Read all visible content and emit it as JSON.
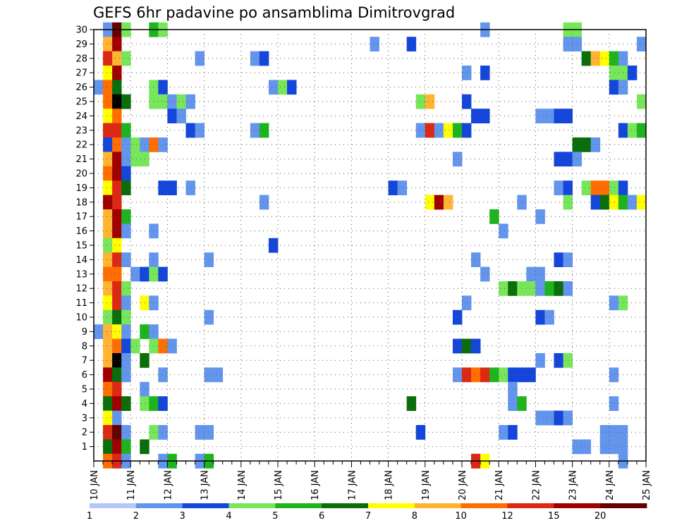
{
  "chart_data": {
    "type": "heatmap",
    "title": "GEFS 6hr padavine po ansamblima Dimitrovgrad",
    "x_tick_labels": [
      "10 JAN",
      "11 JAN",
      "12 JAN",
      "13 JAN",
      "14 JAN",
      "15 JAN",
      "16 JAN",
      "17 JAN",
      "18 JAN",
      "19 JAN",
      "20 JAN",
      "21 JAN",
      "22 JAN",
      "23 JAN",
      "24 JAN",
      "25 JAN"
    ],
    "y_tick_labels": [
      "1",
      "2",
      "3",
      "4",
      "5",
      "6",
      "7",
      "8",
      "9",
      "10",
      "11",
      "12",
      "13",
      "14",
      "15",
      "16",
      "17",
      "18",
      "19",
      "20",
      "21",
      "22",
      "23",
      "24",
      "25",
      "26",
      "27",
      "28",
      "29",
      "30"
    ],
    "x_range_steps": [
      0,
      60
    ],
    "y_range_members": [
      0,
      30
    ],
    "grid": "dotted",
    "legend": {
      "placement": "bottom",
      "labels": [
        "1",
        "2",
        "3",
        "4",
        "5",
        "6",
        "7",
        "8",
        "10",
        "12",
        "15",
        "20"
      ],
      "colors": [
        "#b4c8f8",
        "#6495ed",
        "#1446dc",
        "#78e65a",
        "#1eb41e",
        "#0a6e0a",
        "#ffff00",
        "#ffb432",
        "#ff6e00",
        "#dc2814",
        "#a00000",
        "#640000"
      ]
    },
    "cells": [
      [
        30,
        1,
        1
      ],
      [
        30,
        2,
        11
      ],
      [
        30,
        3,
        3
      ],
      [
        30,
        6,
        4
      ],
      [
        30,
        7,
        3
      ],
      [
        30,
        42,
        1
      ],
      [
        30,
        51,
        3
      ],
      [
        30,
        52,
        3
      ],
      [
        29,
        1,
        7
      ],
      [
        29,
        2,
        10
      ],
      [
        29,
        30,
        1
      ],
      [
        29,
        34,
        2
      ],
      [
        29,
        51,
        1
      ],
      [
        29,
        52,
        1
      ],
      [
        29,
        59,
        1
      ],
      [
        28,
        1,
        9
      ],
      [
        28,
        2,
        7
      ],
      [
        28,
        3,
        3
      ],
      [
        28,
        11,
        1
      ],
      [
        28,
        17,
        1
      ],
      [
        28,
        18,
        2
      ],
      [
        28,
        53,
        5
      ],
      [
        28,
        54,
        7
      ],
      [
        28,
        55,
        6
      ],
      [
        28,
        56,
        4
      ],
      [
        28,
        57,
        1
      ],
      [
        27,
        1,
        6
      ],
      [
        27,
        2,
        10
      ],
      [
        27,
        40,
        1
      ],
      [
        27,
        42,
        2
      ],
      [
        27,
        56,
        3
      ],
      [
        27,
        57,
        3
      ],
      [
        27,
        58,
        2
      ],
      [
        26,
        0,
        1
      ],
      [
        26,
        1,
        8
      ],
      [
        26,
        2,
        5
      ],
      [
        26,
        6,
        3
      ],
      [
        26,
        7,
        2
      ],
      [
        26,
        19,
        1
      ],
      [
        26,
        20,
        3
      ],
      [
        26,
        21,
        2
      ],
      [
        26,
        56,
        2
      ],
      [
        26,
        57,
        1
      ],
      [
        25,
        1,
        8
      ],
      [
        25,
        2,
        12
      ],
      [
        25,
        3,
        5
      ],
      [
        25,
        6,
        3
      ],
      [
        25,
        7,
        3
      ],
      [
        25,
        8,
        1
      ],
      [
        25,
        9,
        3
      ],
      [
        25,
        10,
        1
      ],
      [
        25,
        35,
        3
      ],
      [
        25,
        36,
        7
      ],
      [
        25,
        40,
        2
      ],
      [
        25,
        59,
        3
      ],
      [
        24,
        1,
        6
      ],
      [
        24,
        2,
        8
      ],
      [
        24,
        8,
        2
      ],
      [
        24,
        9,
        1
      ],
      [
        24,
        41,
        2
      ],
      [
        24,
        42,
        2
      ],
      [
        24,
        48,
        1
      ],
      [
        24,
        49,
        1
      ],
      [
        24,
        50,
        2
      ],
      [
        24,
        51,
        2
      ],
      [
        23,
        1,
        9
      ],
      [
        23,
        2,
        9
      ],
      [
        23,
        3,
        4
      ],
      [
        23,
        10,
        2
      ],
      [
        23,
        11,
        1
      ],
      [
        23,
        17,
        1
      ],
      [
        23,
        18,
        4
      ],
      [
        23,
        35,
        1
      ],
      [
        23,
        36,
        9
      ],
      [
        23,
        37,
        1
      ],
      [
        23,
        38,
        6
      ],
      [
        23,
        39,
        4
      ],
      [
        23,
        40,
        2
      ],
      [
        23,
        57,
        2
      ],
      [
        23,
        58,
        3
      ],
      [
        23,
        59,
        4
      ],
      [
        22,
        1,
        2
      ],
      [
        22,
        2,
        8
      ],
      [
        22,
        3,
        1
      ],
      [
        22,
        4,
        3
      ],
      [
        22,
        5,
        1
      ],
      [
        22,
        6,
        8
      ],
      [
        22,
        7,
        1
      ],
      [
        22,
        52,
        5
      ],
      [
        22,
        53,
        5
      ],
      [
        22,
        54,
        1
      ],
      [
        21,
        1,
        7
      ],
      [
        21,
        2,
        10
      ],
      [
        21,
        3,
        1
      ],
      [
        21,
        4,
        3
      ],
      [
        21,
        5,
        3
      ],
      [
        21,
        39,
        1
      ],
      [
        21,
        50,
        2
      ],
      [
        21,
        51,
        2
      ],
      [
        21,
        52,
        1
      ],
      [
        20,
        1,
        8
      ],
      [
        20,
        2,
        10
      ],
      [
        20,
        3,
        2
      ],
      [
        19,
        1,
        6
      ],
      [
        19,
        2,
        9
      ],
      [
        19,
        3,
        5
      ],
      [
        19,
        7,
        2
      ],
      [
        19,
        8,
        2
      ],
      [
        19,
        10,
        1
      ],
      [
        19,
        32,
        2
      ],
      [
        19,
        33,
        1
      ],
      [
        19,
        50,
        1
      ],
      [
        19,
        51,
        2
      ],
      [
        19,
        53,
        3
      ],
      [
        19,
        54,
        8
      ],
      [
        19,
        55,
        8
      ],
      [
        19,
        56,
        3
      ],
      [
        19,
        57,
        2
      ],
      [
        18,
        1,
        10
      ],
      [
        18,
        2,
        9
      ],
      [
        18,
        18,
        1
      ],
      [
        18,
        36,
        6
      ],
      [
        18,
        37,
        10
      ],
      [
        18,
        38,
        7
      ],
      [
        18,
        46,
        1
      ],
      [
        18,
        51,
        3
      ],
      [
        18,
        54,
        2
      ],
      [
        18,
        55,
        5
      ],
      [
        18,
        56,
        6
      ],
      [
        18,
        57,
        4
      ],
      [
        18,
        58,
        1
      ],
      [
        18,
        59,
        6
      ],
      [
        17,
        1,
        7
      ],
      [
        17,
        2,
        10
      ],
      [
        17,
        3,
        4
      ],
      [
        17,
        43,
        4
      ],
      [
        17,
        48,
        1
      ],
      [
        16,
        1,
        7
      ],
      [
        16,
        2,
        10
      ],
      [
        16,
        3,
        1
      ],
      [
        16,
        6,
        1
      ],
      [
        16,
        44,
        1
      ],
      [
        15,
        1,
        3
      ],
      [
        15,
        2,
        6
      ],
      [
        15,
        19,
        2
      ],
      [
        14,
        1,
        7
      ],
      [
        14,
        2,
        9
      ],
      [
        14,
        3,
        1
      ],
      [
        14,
        6,
        1
      ],
      [
        14,
        12,
        1
      ],
      [
        14,
        41,
        1
      ],
      [
        14,
        50,
        2
      ],
      [
        14,
        51,
        1
      ],
      [
        13,
        1,
        8
      ],
      [
        13,
        2,
        8
      ],
      [
        13,
        4,
        1
      ],
      [
        13,
        5,
        2
      ],
      [
        13,
        6,
        3
      ],
      [
        13,
        7,
        2
      ],
      [
        13,
        42,
        1
      ],
      [
        13,
        47,
        1
      ],
      [
        13,
        48,
        1
      ],
      [
        12,
        1,
        7
      ],
      [
        12,
        2,
        9
      ],
      [
        12,
        3,
        3
      ],
      [
        12,
        44,
        3
      ],
      [
        12,
        45,
        5
      ],
      [
        12,
        46,
        3
      ],
      [
        12,
        47,
        3
      ],
      [
        12,
        48,
        1
      ],
      [
        12,
        49,
        4
      ],
      [
        12,
        50,
        5
      ],
      [
        12,
        51,
        1
      ],
      [
        11,
        1,
        6
      ],
      [
        11,
        2,
        9
      ],
      [
        11,
        3,
        1
      ],
      [
        11,
        5,
        6
      ],
      [
        11,
        6,
        1
      ],
      [
        11,
        40,
        1
      ],
      [
        11,
        56,
        1
      ],
      [
        11,
        57,
        3
      ],
      [
        10,
        1,
        3
      ],
      [
        10,
        2,
        5
      ],
      [
        10,
        3,
        3
      ],
      [
        10,
        12,
        1
      ],
      [
        10,
        39,
        2
      ],
      [
        10,
        48,
        2
      ],
      [
        10,
        49,
        1
      ],
      [
        9,
        0,
        1
      ],
      [
        9,
        1,
        7
      ],
      [
        9,
        2,
        6
      ],
      [
        9,
        3,
        1
      ],
      [
        9,
        5,
        4
      ],
      [
        9,
        6,
        1
      ],
      [
        8,
        1,
        7
      ],
      [
        8,
        2,
        8
      ],
      [
        8,
        3,
        2
      ],
      [
        8,
        4,
        3
      ],
      [
        8,
        6,
        3
      ],
      [
        8,
        7,
        8
      ],
      [
        8,
        8,
        1
      ],
      [
        8,
        39,
        2
      ],
      [
        8,
        40,
        5
      ],
      [
        8,
        41,
        2
      ],
      [
        7,
        1,
        7
      ],
      [
        7,
        2,
        12
      ],
      [
        7,
        3,
        1
      ],
      [
        7,
        5,
        5
      ],
      [
        7,
        48,
        1
      ],
      [
        7,
        50,
        2
      ],
      [
        7,
        51,
        3
      ],
      [
        6,
        1,
        10
      ],
      [
        6,
        2,
        5
      ],
      [
        6,
        3,
        1
      ],
      [
        6,
        7,
        1
      ],
      [
        6,
        12,
        1
      ],
      [
        6,
        13,
        1
      ],
      [
        6,
        39,
        1
      ],
      [
        6,
        40,
        9
      ],
      [
        6,
        41,
        8
      ],
      [
        6,
        42,
        9
      ],
      [
        6,
        43,
        4
      ],
      [
        6,
        44,
        3
      ],
      [
        6,
        45,
        2
      ],
      [
        6,
        46,
        2
      ],
      [
        6,
        47,
        2
      ],
      [
        6,
        56,
        1
      ],
      [
        5,
        1,
        8
      ],
      [
        5,
        2,
        9
      ],
      [
        5,
        5,
        1
      ],
      [
        5,
        45,
        1
      ],
      [
        4,
        1,
        5
      ],
      [
        4,
        2,
        10
      ],
      [
        4,
        3,
        5
      ],
      [
        4,
        5,
        3
      ],
      [
        4,
        6,
        4
      ],
      [
        4,
        7,
        2
      ],
      [
        4,
        34,
        5
      ],
      [
        4,
        45,
        1
      ],
      [
        4,
        46,
        4
      ],
      [
        4,
        56,
        1
      ],
      [
        3,
        1,
        6
      ],
      [
        3,
        2,
        1
      ],
      [
        3,
        48,
        1
      ],
      [
        3,
        49,
        1
      ],
      [
        3,
        50,
        2
      ],
      [
        3,
        51,
        1
      ],
      [
        2,
        1,
        9
      ],
      [
        2,
        2,
        11
      ],
      [
        2,
        3,
        1
      ],
      [
        2,
        6,
        3
      ],
      [
        2,
        7,
        1
      ],
      [
        2,
        11,
        1
      ],
      [
        2,
        12,
        1
      ],
      [
        2,
        35,
        2
      ],
      [
        2,
        44,
        1
      ],
      [
        2,
        45,
        2
      ],
      [
        2,
        55,
        1
      ],
      [
        2,
        56,
        1
      ],
      [
        2,
        57,
        1
      ],
      [
        1,
        1,
        5
      ],
      [
        1,
        2,
        10
      ],
      [
        1,
        3,
        4
      ],
      [
        1,
        5,
        5
      ],
      [
        1,
        52,
        1
      ],
      [
        1,
        53,
        1
      ],
      [
        1,
        55,
        1
      ],
      [
        1,
        56,
        1
      ],
      [
        1,
        57,
        1
      ],
      [
        0,
        1,
        8
      ],
      [
        0,
        2,
        9
      ],
      [
        0,
        3,
        1
      ],
      [
        0,
        7,
        1
      ],
      [
        0,
        8,
        4
      ],
      [
        0,
        11,
        1
      ],
      [
        0,
        12,
        4
      ],
      [
        0,
        41,
        9
      ],
      [
        0,
        42,
        6
      ],
      [
        0,
        57,
        1
      ]
    ]
  }
}
